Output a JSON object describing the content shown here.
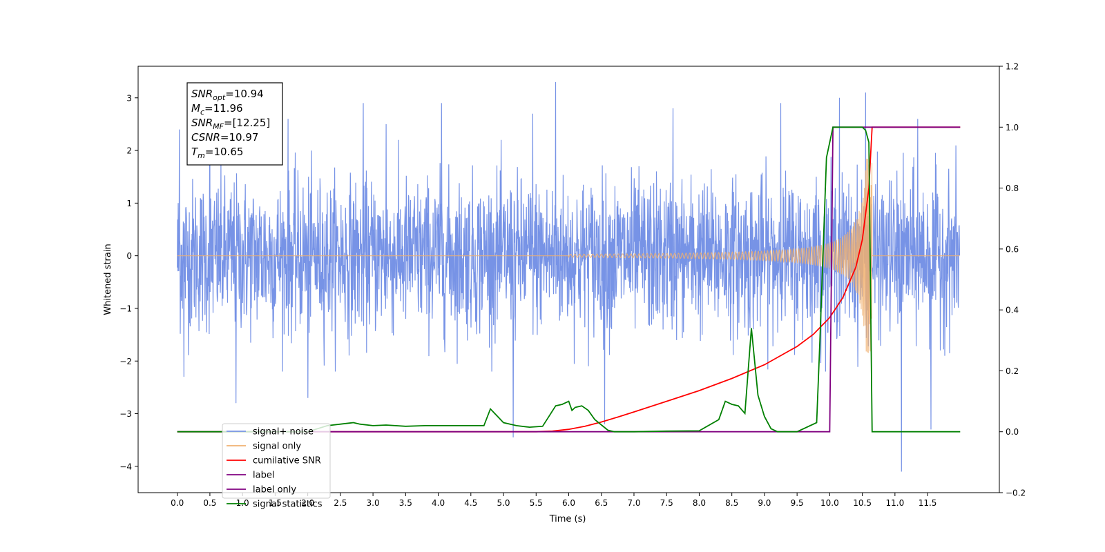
{
  "chart_data": {
    "type": "line",
    "xlabel": "Time (s)",
    "ylabel_left": "Whitened strain",
    "ylabel_right": "",
    "xlim": [
      -0.6,
      12.6
    ],
    "ylim_left": [
      -4.5,
      3.6
    ],
    "ylim_right": [
      -0.2,
      1.2
    ],
    "x_ticks": [
      0.0,
      0.5,
      1.0,
      1.5,
      2.0,
      2.5,
      3.0,
      3.5,
      4.0,
      4.5,
      5.0,
      5.5,
      6.0,
      6.5,
      7.0,
      7.5,
      8.0,
      8.5,
      9.0,
      9.5,
      10.0,
      10.5,
      11.0,
      11.5
    ],
    "x_tick_labels": [
      "0.0",
      "0.5",
      "1.0",
      "1.5",
      "2.0",
      "2.5",
      "3.0",
      "3.5",
      "4.0",
      "4.5",
      "5.0",
      "5.5",
      "6.0",
      "6.5",
      "7.0",
      "7.5",
      "8.0",
      "8.5",
      "9.0",
      "9.5",
      "10.0",
      "10.5",
      "11.0",
      "11.5"
    ],
    "y_left_ticks": [
      3,
      2,
      1,
      0,
      -1,
      -2,
      -3,
      -4
    ],
    "y_left_tick_labels": [
      "3",
      "2",
      "1",
      "0",
      "−1",
      "−2",
      "−3",
      "−4"
    ],
    "y_right_ticks": [
      1.2,
      1.0,
      0.8,
      0.6,
      0.4,
      0.2,
      0.0,
      -0.2
    ],
    "y_right_tick_labels": [
      "1.2",
      "1.0",
      "0.8",
      "0.6",
      "0.4",
      "0.2",
      "0.0",
      "−0.2"
    ],
    "grid": false,
    "legend_placement": "lower-left",
    "annotation": {
      "lines": [
        {
          "sym": "SNR",
          "sub": "opt",
          "val": "=10.94"
        },
        {
          "sym": "M",
          "sub": "c",
          "val": "=11.96"
        },
        {
          "sym": "SNR",
          "sub": "MF",
          "val": "=[12.25]"
        },
        {
          "sym": "CSNR",
          "sub": "",
          "val": "=10.97"
        },
        {
          "sym": "T",
          "sub": "m",
          "val": "=10.65"
        }
      ]
    },
    "series": [
      {
        "name": "signal+ noise",
        "axis": "left",
        "color": "#7793e6",
        "description_values": {
          "t_start": 0.0,
          "t_end": 11.99,
          "envelope_typical": [
            -1.8,
            1.8
          ],
          "extremes": [
            -4.1,
            3.3
          ]
        },
        "spikes": [
          [
            0.03,
            2.4
          ],
          [
            0.1,
            -2.3
          ],
          [
            0.5,
            2.7
          ],
          [
            0.9,
            -2.8
          ],
          [
            1.7,
            2.6
          ],
          [
            2.0,
            -2.7
          ],
          [
            2.85,
            2.9
          ],
          [
            3.2,
            2.5
          ],
          [
            4.05,
            2.9
          ],
          [
            5.15,
            -3.45
          ],
          [
            5.45,
            2.7
          ],
          [
            5.8,
            3.3
          ],
          [
            6.55,
            -3.2
          ],
          [
            7.6,
            2.8
          ],
          [
            9.25,
            2.9
          ],
          [
            10.15,
            3.0
          ],
          [
            10.55,
            3.1
          ],
          [
            11.1,
            -4.1
          ],
          [
            11.35,
            2.6
          ],
          [
            11.55,
            -3.3
          ]
        ]
      },
      {
        "name": "signal only",
        "axis": "left",
        "color": "#f0b070",
        "chirp": {
          "t0": 6.0,
          "t_merge": 10.65,
          "amp_at_t0": 0.03,
          "amp_peak": 1.85
        }
      },
      {
        "name": "cumilative SNR",
        "axis": "right",
        "color": "#ff0000",
        "x": [
          0.0,
          5.0,
          5.5,
          5.75,
          6.0,
          6.25,
          6.5,
          6.75,
          7.0,
          7.5,
          8.0,
          8.5,
          9.0,
          9.5,
          9.75,
          10.0,
          10.2,
          10.4,
          10.5,
          10.6,
          10.65,
          12.0
        ],
        "y": [
          0.0,
          0.0,
          0.0,
          0.002,
          0.008,
          0.018,
          0.032,
          0.048,
          0.065,
          0.1,
          0.135,
          0.175,
          0.22,
          0.28,
          0.32,
          0.375,
          0.44,
          0.54,
          0.63,
          0.8,
          1.0,
          1.0
        ]
      },
      {
        "name": "label",
        "axis": "right",
        "color": "#800080",
        "x": [
          0.0,
          10.0,
          10.05,
          12.0
        ],
        "y": [
          0.0,
          0.0,
          1.0,
          1.0
        ]
      },
      {
        "name": "label only",
        "axis": "right",
        "color": "#800080",
        "hidden_in_plot": true,
        "x": [],
        "y": []
      },
      {
        "name": "signal statistics",
        "axis": "right",
        "color": "#008000",
        "x": [
          0.0,
          0.5,
          1.0,
          1.5,
          2.0,
          2.15,
          2.3,
          2.5,
          2.7,
          2.8,
          3.0,
          3.2,
          3.5,
          3.8,
          4.0,
          4.2,
          4.5,
          4.7,
          4.8,
          5.0,
          5.2,
          5.4,
          5.6,
          5.8,
          5.9,
          6.0,
          6.05,
          6.1,
          6.2,
          6.3,
          6.4,
          6.6,
          6.7,
          6.8,
          7.0,
          7.5,
          8.0,
          8.3,
          8.4,
          8.5,
          8.6,
          8.7,
          8.8,
          8.9,
          9.0,
          9.1,
          9.2,
          9.5,
          9.8,
          9.85,
          9.95,
          10.05,
          10.1,
          10.5,
          10.55,
          10.6,
          10.65,
          10.7,
          12.0
        ],
        "y": [
          0.0,
          0.0,
          0.0,
          0.0,
          0.0,
          0.01,
          0.02,
          0.025,
          0.03,
          0.025,
          0.02,
          0.022,
          0.018,
          0.02,
          0.02,
          0.02,
          0.02,
          0.02,
          0.075,
          0.03,
          0.02,
          0.015,
          0.018,
          0.085,
          0.09,
          0.1,
          0.07,
          0.08,
          0.085,
          0.07,
          0.04,
          0.005,
          0.0,
          0.0,
          0.0,
          0.002,
          0.003,
          0.04,
          0.1,
          0.09,
          0.085,
          0.06,
          0.34,
          0.12,
          0.05,
          0.01,
          0.0,
          0.0,
          0.03,
          0.3,
          0.9,
          1.0,
          1.0,
          1.0,
          0.99,
          0.95,
          0.0,
          0.0,
          0.0
        ]
      }
    ]
  }
}
